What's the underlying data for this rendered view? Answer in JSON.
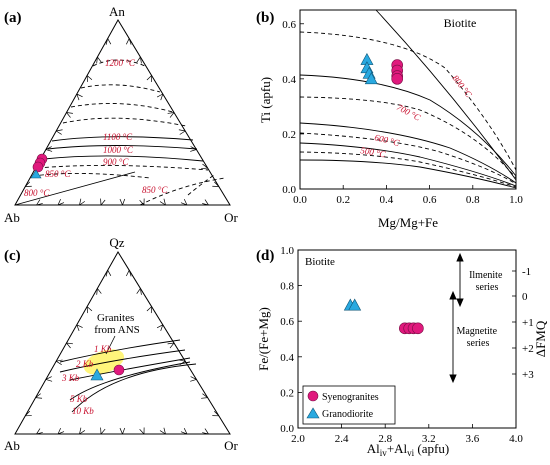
{
  "chart_data": [
    {
      "type": "ternary",
      "panel_label": "(a)",
      "corners": [
        "An",
        "Ab",
        "Or"
      ],
      "isotherm_labels": [
        "1200 °C",
        "1100 °C",
        "1000 °C",
        "900 °C",
        "850 °C",
        "800 °C",
        "850 °C"
      ],
      "points": {
        "series": "Syenogranites",
        "count": 4,
        "region": "Ab-rich side near 900-1000 °C"
      }
    },
    {
      "type": "scatter",
      "panel_label": "(b)",
      "title": "Biotite",
      "xlabel": "Mg/Mg+Fe",
      "ylabel": "Ti (apfu)",
      "xlim": [
        0.0,
        1.0
      ],
      "ylim": [
        0.0,
        0.65
      ],
      "xticks": [
        "0.0",
        "0.2",
        "0.4",
        "0.6",
        "0.8",
        "1.0"
      ],
      "yticks": [
        "0.0",
        "0.2",
        "0.4",
        "0.6"
      ],
      "isotherm_labels": [
        "800 °C",
        "700 °C",
        "600 °C",
        "500 °C"
      ],
      "series": [
        {
          "name": "Syenogranites",
          "color": "#e0197d",
          "points": [
            [
              0.45,
              0.45
            ],
            [
              0.45,
              0.43
            ],
            [
              0.45,
              0.41
            ],
            [
              0.45,
              0.4
            ]
          ]
        },
        {
          "name": "Granodiorite",
          "color": "#29a9e0",
          "points": [
            [
              0.31,
              0.47
            ],
            [
              0.31,
              0.44
            ],
            [
              0.32,
              0.42
            ],
            [
              0.33,
              0.4
            ]
          ]
        }
      ]
    },
    {
      "type": "ternary",
      "panel_label": "(c)",
      "corners": [
        "Qz",
        "Ab",
        "Or"
      ],
      "annotation": "Granites\nfrom ANS",
      "pressure_labels": [
        "1 Kb",
        "2 Kb",
        "3 Kb",
        "5 Kb",
        "10 Kb"
      ]
    },
    {
      "type": "scatter",
      "panel_label": "(d)",
      "title": "Biotite",
      "xlabel": "Aliv+Alvi (apfu)",
      "ylabel": "Fe/(Fe+Mg)",
      "y2label": "ΔFMQ",
      "xlim": [
        2.0,
        4.0
      ],
      "ylim": [
        0.0,
        1.0
      ],
      "xticks": [
        "2.0",
        "2.4",
        "2.8",
        "3.2",
        "3.6",
        "4.0"
      ],
      "yticks": [
        "0.0",
        "0.2",
        "0.4",
        "0.6",
        "0.8",
        "1.0"
      ],
      "y2ticks": [
        "-1",
        "0",
        "+1",
        "+2",
        "+3"
      ],
      "series_labels": [
        "Ilmenite\nseries",
        "Magnetite\nseries"
      ],
      "legend": [
        "Syenogranites",
        "Granodiorite"
      ],
      "series": [
        {
          "name": "Syenogranites",
          "color": "#e0197d",
          "points": [
            [
              2.98,
              0.56
            ],
            [
              3.02,
              0.56
            ],
            [
              3.06,
              0.56
            ],
            [
              3.1,
              0.56
            ]
          ]
        },
        {
          "name": "Granodiorite",
          "color": "#29a9e0",
          "points": [
            [
              2.48,
              0.69
            ],
            [
              2.52,
              0.69
            ]
          ]
        }
      ]
    }
  ]
}
